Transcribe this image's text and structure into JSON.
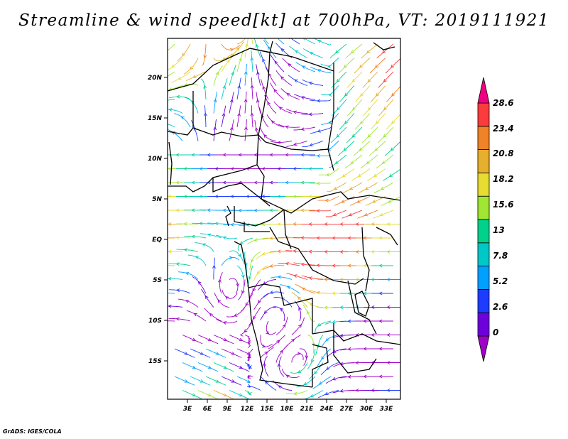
{
  "title": "Streamline & wind speed[kt] at 700hPa, VT: 2019111921",
  "credit": "GrADS: IGES/COLA",
  "map": {
    "lat_ticks": [
      "20N",
      "15N",
      "10N",
      "5N",
      "EQ",
      "5S",
      "10S",
      "15S"
    ],
    "lon_ticks": [
      "3E",
      "6E",
      "9E",
      "12E",
      "15E",
      "18E",
      "21E",
      "24E",
      "27E",
      "30E",
      "33E"
    ]
  },
  "colorbar": {
    "labels": [
      "0",
      "2.6",
      "5.2",
      "7.8",
      "13",
      "15.6",
      "18.2",
      "20.8",
      "23.4",
      "28.6"
    ],
    "colors": [
      "#a000c8",
      "#6e00dc",
      "#1e3cff",
      "#00a0ff",
      "#00c8c8",
      "#00d28c",
      "#a0e632",
      "#e6dc32",
      "#e6af2d",
      "#f08228",
      "#fa3c3c",
      "#f00082"
    ]
  }
}
